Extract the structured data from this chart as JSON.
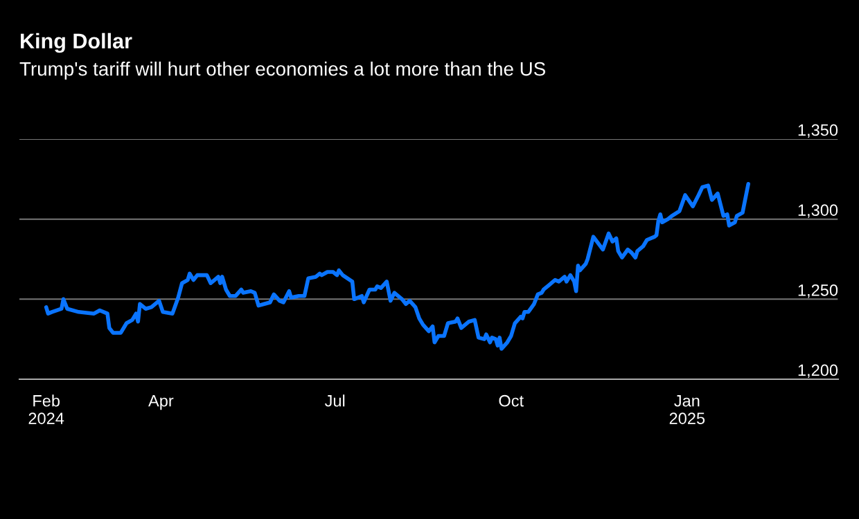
{
  "chart_data": {
    "type": "line",
    "title": "King Dollar",
    "subtitle": "Trump's tariff will hurt other economies a lot more than the US",
    "x": [
      "2024-02-01",
      "2024-02-02",
      "2024-02-04",
      "2024-02-09",
      "2024-02-10",
      "2024-02-12",
      "2024-02-18",
      "2024-02-26",
      "2024-02-29",
      "2024-03-04",
      "2024-03-05",
      "2024-03-07",
      "2024-03-11",
      "2024-03-14",
      "2024-03-17",
      "2024-03-19",
      "2024-03-20",
      "2024-03-21",
      "2024-03-24",
      "2024-03-27",
      "2024-03-31",
      "2024-04-02",
      "2024-04-07",
      "2024-04-10",
      "2024-04-12",
      "2024-04-15",
      "2024-04-16",
      "2024-04-18",
      "2024-04-20",
      "2024-04-25",
      "2024-04-27",
      "2024-04-29",
      "2024-05-01",
      "2024-05-02",
      "2024-05-03",
      "2024-05-05",
      "2024-05-07",
      "2024-05-10",
      "2024-05-13",
      "2024-05-14",
      "2024-05-18",
      "2024-05-20",
      "2024-05-22",
      "2024-05-25",
      "2024-05-28",
      "2024-05-30",
      "2024-06-02",
      "2024-06-04",
      "2024-06-07",
      "2024-06-08",
      "2024-06-12",
      "2024-06-15",
      "2024-06-17",
      "2024-06-21",
      "2024-06-23",
      "2024-06-24",
      "2024-06-27",
      "2024-06-30",
      "2024-07-02",
      "2024-07-03",
      "2024-07-05",
      "2024-07-10",
      "2024-07-11",
      "2024-07-15",
      "2024-07-16",
      "2024-07-19",
      "2024-07-22",
      "2024-07-23",
      "2024-07-25",
      "2024-07-28",
      "2024-07-30",
      "2024-08-01",
      "2024-08-05",
      "2024-08-07",
      "2024-08-09",
      "2024-08-12",
      "2024-08-14",
      "2024-08-16",
      "2024-08-19",
      "2024-08-21",
      "2024-08-22",
      "2024-08-24",
      "2024-08-27",
      "2024-08-29",
      "2024-09-02",
      "2024-09-03",
      "2024-09-05",
      "2024-09-09",
      "2024-09-12",
      "2024-09-14",
      "2024-09-17",
      "2024-09-18",
      "2024-09-20",
      "2024-09-21",
      "2024-09-23",
      "2024-09-24",
      "2024-09-25",
      "2024-09-26",
      "2024-09-29",
      "2024-10-01",
      "2024-10-03",
      "2024-10-06",
      "2024-10-07",
      "2024-10-08",
      "2024-10-10",
      "2024-10-13",
      "2024-10-15",
      "2024-10-17",
      "2024-10-18",
      "2024-10-21",
      "2024-10-23",
      "2024-10-24",
      "2024-10-26",
      "2024-10-29",
      "2024-10-30",
      "2024-11-01",
      "2024-11-03",
      "2024-11-04",
      "2024-11-05",
      "2024-11-06",
      "2024-11-09",
      "2024-11-10",
      "2024-11-13",
      "2024-11-18",
      "2024-11-21",
      "2024-11-23",
      "2024-11-25",
      "2024-11-26",
      "2024-11-28",
      "2024-12-01",
      "2024-12-03",
      "2024-12-05",
      "2024-12-06",
      "2024-12-09",
      "2024-12-11",
      "2024-12-15",
      "2024-12-16",
      "2024-12-17",
      "2024-12-18",
      "2024-12-19",
      "2024-12-22",
      "2024-12-24",
      "2024-12-28",
      "2024-12-31",
      "2025-01-04",
      "2025-01-07",
      "2025-01-09",
      "2025-01-12",
      "2025-01-14",
      "2025-01-17",
      "2025-01-20",
      "2025-01-22",
      "2025-01-23",
      "2025-01-26",
      "2025-01-27",
      "2025-01-30",
      "2025-02-02"
    ],
    "series": [
      {
        "color": "#0a74ff",
        "values": [
          1245,
          1241,
          1242,
          1244,
          1250,
          1244,
          1242,
          1241,
          1243,
          1241,
          1232,
          1229,
          1229,
          1235,
          1237,
          1241,
          1236,
          1247,
          1244,
          1245,
          1249,
          1242,
          1241,
          1251,
          1260,
          1262,
          1266,
          1262,
          1265,
          1265,
          1260,
          1262,
          1264,
          1260,
          1264,
          1256,
          1252,
          1252,
          1256,
          1254,
          1255,
          1254,
          1246,
          1247,
          1248,
          1253,
          1249,
          1248,
          1255,
          1251,
          1252,
          1252,
          1263,
          1264,
          1266,
          1265,
          1267,
          1267,
          1265,
          1268,
          1265,
          1261,
          1250,
          1252,
          1248,
          1256,
          1256,
          1258,
          1257,
          1261,
          1249,
          1254,
          1250,
          1247,
          1249,
          1245,
          1238,
          1234,
          1230,
          1233,
          1223,
          1227,
          1227,
          1235,
          1236,
          1238,
          1232,
          1236,
          1237,
          1226,
          1225,
          1228,
          1223,
          1226,
          1225,
          1221,
          1226,
          1219,
          1223,
          1227,
          1235,
          1239,
          1238,
          1242,
          1242,
          1247,
          1253,
          1254,
          1256,
          1259,
          1261,
          1262,
          1261,
          1264,
          1261,
          1265,
          1261,
          1255,
          1271,
          1268,
          1272,
          1275,
          1289,
          1281,
          1291,
          1286,
          1288,
          1280,
          1276,
          1281,
          1279,
          1276,
          1280,
          1283,
          1287,
          1289,
          1290,
          1299,
          1303,
          1298,
          1300,
          1302,
          1305,
          1315,
          1308,
          1315,
          1320,
          1321,
          1312,
          1316,
          1302,
          1303,
          1296,
          1298,
          1302,
          1304,
          1322
        ]
      }
    ],
    "xlim": [
      "2024-01-18",
      "2025-03-21"
    ],
    "xticks": [
      {
        "value": "2024-02-01",
        "label": "Feb\n2024"
      },
      {
        "value": "2024-04-01",
        "label": "Apr"
      },
      {
        "value": "2024-07-01",
        "label": "Jul"
      },
      {
        "value": "2024-10-01",
        "label": "Oct"
      },
      {
        "value": "2025-01-01",
        "label": "Jan\n2025"
      }
    ],
    "ylim": [
      1200,
      1350
    ],
    "yticks": [
      {
        "value": 1200,
        "label": "1,200"
      },
      {
        "value": 1250,
        "label": "1,250"
      },
      {
        "value": 1300,
        "label": "1,300"
      },
      {
        "value": 1350,
        "label": "1,350"
      }
    ],
    "grid": "y",
    "marker": "none",
    "line_style": "solid"
  }
}
